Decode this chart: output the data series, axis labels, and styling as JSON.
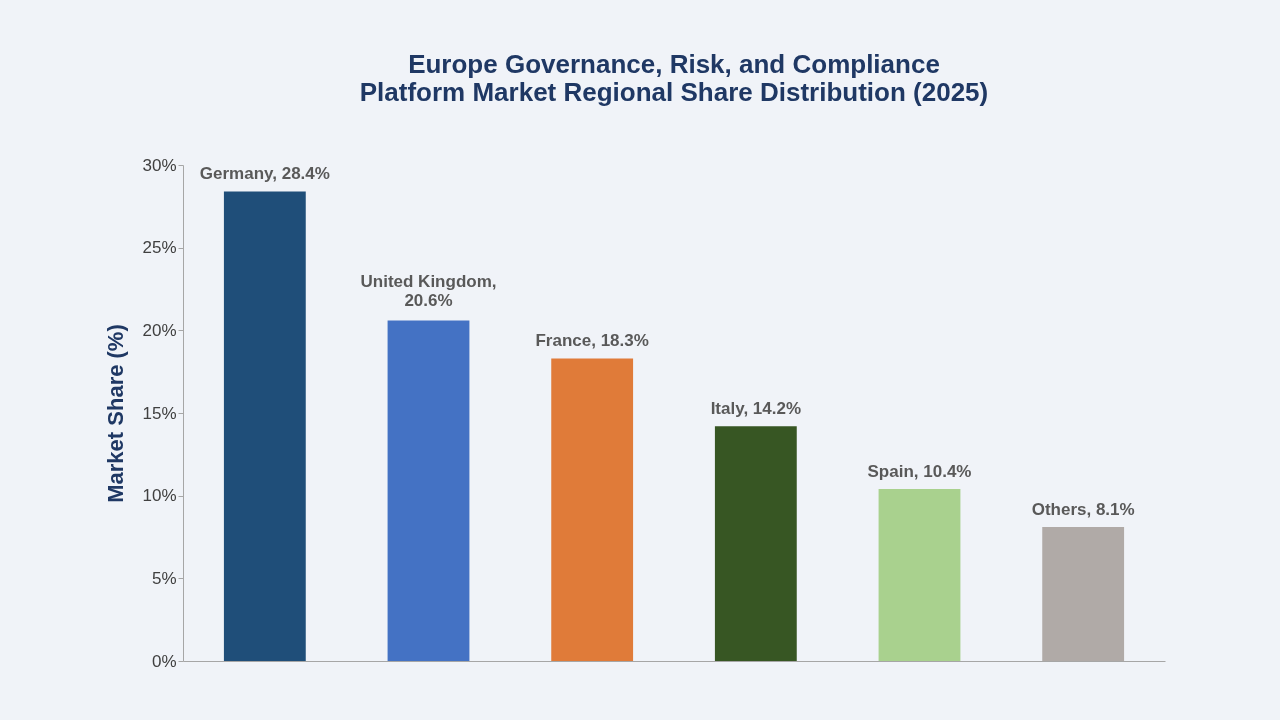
{
  "chart_data": {
    "type": "bar",
    "title": "Europe Governance, Risk, and Compliance\nPlatform Market Regional Share Distribution (2025)",
    "ylabel": "Market Share (%)",
    "categories": [
      null,
      null,
      null,
      null,
      null,
      null
    ],
    "values": [
      28.4,
      20.6,
      18.3,
      14.2,
      10.4,
      8.1
    ],
    "colors": [
      "#1f4e79",
      "#4472c4",
      "#e07b39",
      "#375623",
      "#a9d18e",
      "#b0aaa7"
    ],
    "value_labels": [
      "Germany, 28.4%",
      "United Kingdom,\n20.6%",
      "France, 18.3%",
      "Italy, 14.2%",
      "Spain, 10.4%",
      "Others, 8.1%"
    ],
    "ylim": [
      0,
      30
    ],
    "yticks": [
      {
        "value": 0,
        "label": "0%"
      },
      {
        "value": 5,
        "label": "5%"
      },
      {
        "value": 10,
        "label": "10%"
      },
      {
        "value": 15,
        "label": "15%"
      },
      {
        "value": 20,
        "label": "20%"
      },
      {
        "value": 25,
        "label": "25%"
      },
      {
        "value": 30,
        "label": "30%"
      }
    ],
    "tick_labels": "y",
    "grid": false
  }
}
